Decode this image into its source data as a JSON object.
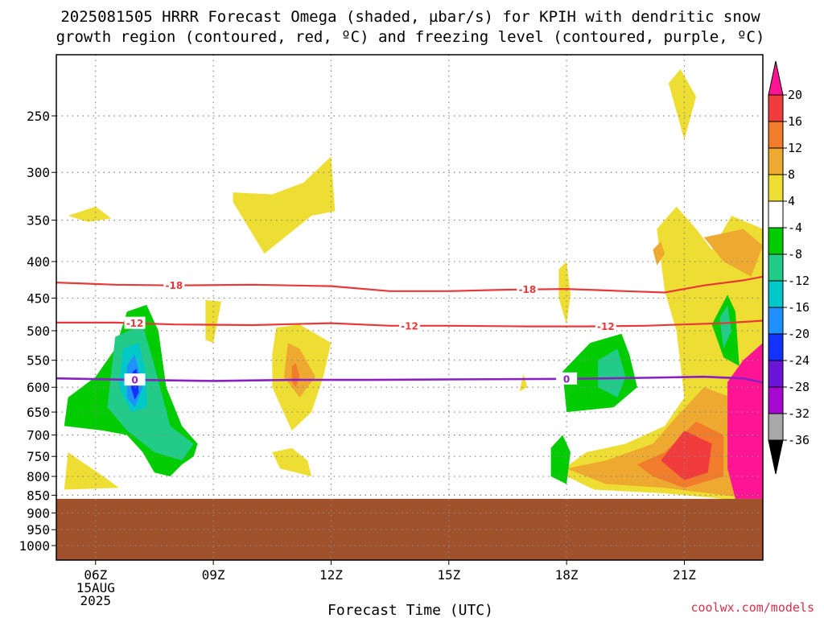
{
  "title": {
    "line1": "2025081505 HRRR Forecast Omega (shaded, µbar/s) for KPIH with dendritic snow",
    "line2": "growth region (contoured, red, ºC) and freezing level (contoured, purple, ºC)"
  },
  "credit": "coolwx.com/models",
  "colors": {
    "ground": "#a0522d",
    "grid": "#888888",
    "isotherm": "#e8393a",
    "freezing_level": "#8a1fc2"
  },
  "chart_data": {
    "type": "heatmap",
    "title": "2025081505 HRRR Forecast Omega (shaded, µbar/s) for KPIH with dendritic snow growth region (contoured, red, ºC) and freezing level (contoured, purple, ºC)",
    "xlabel": "Forecast Time (UTC)",
    "ylabel": "",
    "x_ticks": [
      {
        "hour": 6,
        "label": "06Z",
        "sub": [
          "15AUG",
          "2025"
        ]
      },
      {
        "hour": 9,
        "label": "09Z",
        "sub": []
      },
      {
        "hour": 12,
        "label": "12Z",
        "sub": []
      },
      {
        "hour": 15,
        "label": "15Z",
        "sub": []
      },
      {
        "hour": 18,
        "label": "18Z",
        "sub": []
      },
      {
        "hour": 21,
        "label": "21Z",
        "sub": []
      }
    ],
    "xlim": [
      5.0,
      23.0
    ],
    "y_ticks": [
      {
        "p": 250,
        "label": "250"
      },
      {
        "p": 300,
        "label": "300"
      },
      {
        "p": 350,
        "label": "350"
      },
      {
        "p": 400,
        "label": "400"
      },
      {
        "p": 450,
        "label": "450"
      },
      {
        "p": 500,
        "label": "500"
      },
      {
        "p": 550,
        "label": "550"
      },
      {
        "p": 600,
        "label": "600"
      },
      {
        "p": 650,
        "label": "650"
      },
      {
        "p": 700,
        "label": "700"
      },
      {
        "p": 750,
        "label": "750"
      },
      {
        "p": 800,
        "label": "800"
      },
      {
        "p": 850,
        "label": "850"
      },
      {
        "p": 900,
        "label": "900"
      },
      {
        "p": 950,
        "label": "950"
      },
      {
        "p": 1000,
        "label": "1000"
      }
    ],
    "ylim": [
      1000,
      200
    ],
    "y_scale": "log-pressure",
    "grid": true,
    "surface_pressure": 860,
    "colorbar": {
      "labels": [
        "20",
        "16",
        "12",
        "8",
        "4",
        "-4",
        "-8",
        "-12",
        "-16",
        "-20",
        "-24",
        "-28",
        "-32",
        "-36"
      ],
      "colors": [
        "#ff1493",
        "#f03c3c",
        "#f07c2c",
        "#eeaa30",
        "#eedd33",
        "#ffffff",
        "#00cc00",
        "#22cc88",
        "#00c8c8",
        "#1e90ff",
        "#1432ff",
        "#6a14d8",
        "#a60ad0",
        "#a8a8a8",
        "#000000"
      ]
    },
    "isotherms": [
      {
        "level": "-18",
        "color": "#e8393a",
        "points": [
          [
            5.0,
            428
          ],
          [
            6.5,
            431
          ],
          [
            8.0,
            432
          ],
          [
            10.0,
            431
          ],
          [
            12.0,
            433
          ],
          [
            13.5,
            440
          ],
          [
            15.0,
            440
          ],
          [
            16.5,
            438
          ],
          [
            18.0,
            437
          ],
          [
            19.5,
            440
          ],
          [
            20.5,
            442
          ],
          [
            21.5,
            432
          ],
          [
            22.5,
            425
          ],
          [
            23.0,
            420
          ]
        ],
        "label_hours": [
          8.0,
          17.0
        ]
      },
      {
        "level": "-12",
        "color": "#e8393a",
        "points": [
          [
            5.0,
            487
          ],
          [
            6.5,
            487
          ],
          [
            8.0,
            490
          ],
          [
            10.0,
            491
          ],
          [
            12.0,
            488
          ],
          [
            13.5,
            492
          ],
          [
            15.0,
            492
          ],
          [
            17.0,
            493
          ],
          [
            18.5,
            493
          ],
          [
            20.0,
            492
          ],
          [
            21.0,
            490
          ],
          [
            22.0,
            488
          ],
          [
            23.0,
            484
          ]
        ],
        "label_hours": [
          7.0,
          14.0,
          19.0
        ]
      },
      {
        "level": "0",
        "color": "#8a1fc2",
        "points": [
          [
            5.0,
            583
          ],
          [
            7.0,
            586
          ],
          [
            9.0,
            588
          ],
          [
            11.0,
            586
          ],
          [
            13.0,
            586
          ],
          [
            15.0,
            585
          ],
          [
            18.0,
            584
          ],
          [
            20.0,
            582
          ],
          [
            21.5,
            580
          ],
          [
            22.5,
            583
          ],
          [
            23.0,
            591
          ]
        ],
        "label_hours": [
          7.0,
          18.0
        ]
      }
    ],
    "omega_regions": [
      {
        "value": 4,
        "band": "4 to 8",
        "points": [
          [
            9.5,
            320
          ],
          [
            10.5,
            322
          ],
          [
            11.3,
            310
          ],
          [
            12.0,
            285
          ],
          [
            12.1,
            340
          ],
          [
            11.5,
            345
          ],
          [
            10.3,
            390
          ],
          [
            9.5,
            330
          ]
        ]
      },
      {
        "value": 4,
        "band": "4 to 8",
        "points": [
          [
            5.3,
            345
          ],
          [
            6.0,
            335
          ],
          [
            6.4,
            348
          ],
          [
            5.8,
            352
          ]
        ]
      },
      {
        "value": 4,
        "band": "4 to 8",
        "points": [
          [
            8.8,
            453
          ],
          [
            9.2,
            455
          ],
          [
            9.0,
            520
          ],
          [
            8.8,
            515
          ]
        ]
      },
      {
        "value": 4,
        "band": "4 to 8",
        "points": [
          [
            10.6,
            495
          ],
          [
            11.2,
            490
          ],
          [
            12.0,
            520
          ],
          [
            11.8,
            580
          ],
          [
            11.5,
            650
          ],
          [
            11.0,
            690
          ],
          [
            10.5,
            600
          ],
          [
            10.5,
            540
          ]
        ]
      },
      {
        "value": 4,
        "band": "4 to 8",
        "points": [
          [
            10.5,
            740
          ],
          [
            11.0,
            730
          ],
          [
            11.4,
            760
          ],
          [
            11.5,
            800
          ],
          [
            10.7,
            780
          ]
        ]
      },
      {
        "value": 4,
        "band": "4 to 8",
        "points": [
          [
            5.3,
            740
          ],
          [
            5.6,
            760
          ],
          [
            6.2,
            800
          ],
          [
            6.6,
            830
          ],
          [
            5.2,
            835
          ]
        ]
      },
      {
        "value": 4,
        "band": "4 to 8",
        "points": [
          [
            16.9,
            575
          ],
          [
            17.0,
            600
          ],
          [
            16.8,
            608
          ]
        ]
      },
      {
        "value": 4,
        "band": "4 to 8",
        "points": [
          [
            17.8,
            410
          ],
          [
            18.0,
            400
          ],
          [
            18.1,
            445
          ],
          [
            18.0,
            490
          ],
          [
            17.8,
            450
          ]
        ]
      },
      {
        "value": 4,
        "band": "4 to 8",
        "points": [
          [
            20.5,
            440
          ],
          [
            20.3,
            360
          ],
          [
            20.8,
            335
          ],
          [
            21.3,
            360
          ],
          [
            21.7,
            385
          ],
          [
            22.2,
            345
          ],
          [
            23.0,
            360
          ],
          [
            23.0,
            860
          ],
          [
            22.0,
            860
          ],
          [
            20.5,
            845
          ],
          [
            18.7,
            835
          ],
          [
            17.8,
            790
          ],
          [
            18.5,
            740
          ],
          [
            19.5,
            720
          ],
          [
            20.5,
            680
          ],
          [
            21.0,
            620
          ],
          [
            20.8,
            500
          ]
        ]
      },
      {
        "value": 4,
        "band": "4 to 8",
        "points": [
          [
            20.6,
            225
          ],
          [
            20.9,
            215
          ],
          [
            21.3,
            235
          ],
          [
            21.0,
            270
          ]
        ]
      },
      {
        "value": 8,
        "band": "8 to 12",
        "points": [
          [
            18.0,
            780
          ],
          [
            19.0,
            760
          ],
          [
            20.2,
            720
          ],
          [
            20.8,
            660
          ],
          [
            21.5,
            600
          ],
          [
            22.2,
            620
          ],
          [
            23.0,
            650
          ],
          [
            23.0,
            860
          ],
          [
            22.0,
            850
          ],
          [
            20.5,
            830
          ],
          [
            19.0,
            820
          ]
        ]
      },
      {
        "value": 8,
        "band": "8 to 12",
        "points": [
          [
            21.5,
            370
          ],
          [
            22.5,
            360
          ],
          [
            23.0,
            380
          ],
          [
            22.7,
            420
          ],
          [
            22.0,
            400
          ]
        ]
      },
      {
        "value": 8,
        "band": "8 to 12",
        "points": [
          [
            20.2,
            385
          ],
          [
            20.4,
            375
          ],
          [
            20.5,
            390
          ],
          [
            20.3,
            405
          ]
        ]
      },
      {
        "value": 8,
        "band": "8 to 12",
        "points": [
          [
            10.9,
            520
          ],
          [
            11.2,
            530
          ],
          [
            11.6,
            580
          ],
          [
            11.2,
            620
          ],
          [
            10.8,
            580
          ]
        ]
      },
      {
        "value": 12,
        "band": "12 to 16",
        "points": [
          [
            19.8,
            770
          ],
          [
            20.5,
            740
          ],
          [
            21.3,
            670
          ],
          [
            22.0,
            700
          ],
          [
            22.0,
            800
          ],
          [
            21.0,
            830
          ],
          [
            20.2,
            800
          ]
        ]
      },
      {
        "value": 12,
        "band": "12 to 16",
        "points": [
          [
            11.0,
            560
          ],
          [
            11.1,
            555
          ],
          [
            11.2,
            580
          ],
          [
            11.1,
            600
          ],
          [
            11.0,
            590
          ]
        ]
      },
      {
        "value": 16,
        "band": "16 to 20",
        "points": [
          [
            20.4,
            760
          ],
          [
            21.0,
            690
          ],
          [
            21.7,
            720
          ],
          [
            21.6,
            790
          ],
          [
            21.0,
            810
          ]
        ]
      },
      {
        "value": 20,
        "band": "20+",
        "points": [
          [
            22.1,
            590
          ],
          [
            22.5,
            550
          ],
          [
            23.0,
            520
          ],
          [
            23.0,
            860
          ],
          [
            22.3,
            860
          ],
          [
            22.1,
            780
          ]
        ]
      },
      {
        "value": -4,
        "band": "-4 to -8",
        "points": [
          [
            6.8,
            470
          ],
          [
            7.3,
            460
          ],
          [
            7.6,
            500
          ],
          [
            7.8,
            600
          ],
          [
            8.2,
            680
          ],
          [
            8.6,
            720
          ],
          [
            8.5,
            750
          ],
          [
            8.2,
            770
          ],
          [
            7.9,
            800
          ],
          [
            7.5,
            790
          ],
          [
            7.2,
            740
          ],
          [
            6.8,
            700
          ],
          [
            6.2,
            690
          ],
          [
            5.2,
            680
          ],
          [
            5.3,
            620
          ],
          [
            6.0,
            580
          ],
          [
            6.5,
            530
          ]
        ]
      },
      {
        "value": -4,
        "band": "-4 to -8",
        "points": [
          [
            17.6,
            730
          ],
          [
            17.9,
            700
          ],
          [
            18.1,
            740
          ],
          [
            18.0,
            820
          ],
          [
            17.6,
            800
          ]
        ]
      },
      {
        "value": -4,
        "band": "-4 to -8",
        "points": [
          [
            17.9,
            570
          ],
          [
            18.6,
            520
          ],
          [
            19.4,
            505
          ],
          [
            19.6,
            540
          ],
          [
            19.8,
            600
          ],
          [
            19.2,
            640
          ],
          [
            18.0,
            650
          ]
        ]
      },
      {
        "value": -4,
        "band": "-4 to -8",
        "points": [
          [
            21.7,
            490
          ],
          [
            22.1,
            445
          ],
          [
            22.3,
            470
          ],
          [
            22.4,
            560
          ],
          [
            22.0,
            545
          ]
        ]
      },
      {
        "value": -8,
        "band": "-8 to -12",
        "points": [
          [
            6.5,
            510
          ],
          [
            7.2,
            490
          ],
          [
            7.5,
            560
          ],
          [
            7.9,
            680
          ],
          [
            8.5,
            720
          ],
          [
            8.2,
            760
          ],
          [
            7.5,
            740
          ],
          [
            6.8,
            690
          ],
          [
            6.3,
            640
          ]
        ]
      },
      {
        "value": -8,
        "band": "-8 to -12",
        "points": [
          [
            18.8,
            550
          ],
          [
            19.3,
            530
          ],
          [
            19.5,
            580
          ],
          [
            19.3,
            620
          ],
          [
            18.8,
            600
          ]
        ]
      },
      {
        "value": -8,
        "band": "-8 to -12",
        "points": [
          [
            21.9,
            480
          ],
          [
            22.1,
            460
          ],
          [
            22.2,
            500
          ],
          [
            22.0,
            530
          ]
        ]
      },
      {
        "value": -12,
        "band": "-12 to -16",
        "points": [
          [
            6.7,
            530
          ],
          [
            7.1,
            520
          ],
          [
            7.3,
            580
          ],
          [
            7.3,
            640
          ],
          [
            6.9,
            650
          ],
          [
            6.6,
            600
          ]
        ]
      },
      {
        "value": -16,
        "band": "-16 to -20",
        "points": [
          [
            6.8,
            560
          ],
          [
            7.0,
            540
          ],
          [
            7.2,
            600
          ],
          [
            7.0,
            640
          ],
          [
            6.8,
            620
          ]
        ]
      },
      {
        "value": -20,
        "band": "-20 to -24",
        "points": [
          [
            6.95,
            570
          ],
          [
            7.05,
            565
          ],
          [
            7.1,
            610
          ],
          [
            7.0,
            625
          ],
          [
            6.9,
            600
          ]
        ]
      }
    ]
  }
}
